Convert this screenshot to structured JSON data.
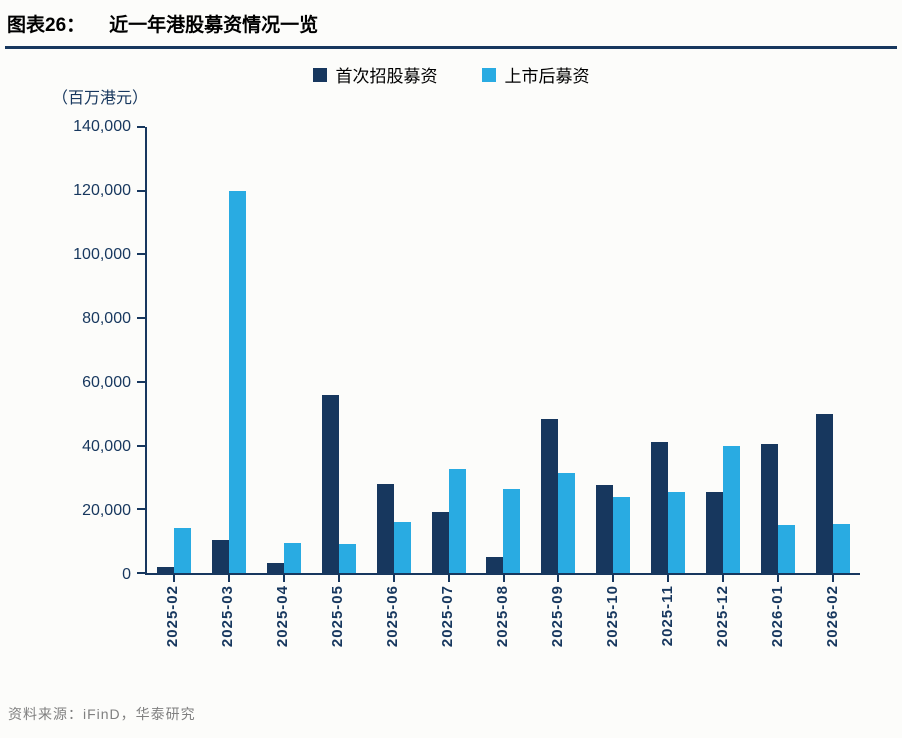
{
  "header": {
    "label": "图表26：",
    "title": "近一年港股募资情况一览"
  },
  "unit_label": "（百万港元）",
  "source": "资料来源：iFinD，华泰研究",
  "colors": {
    "axis": "#17375E",
    "series_dark": "#17375E",
    "series_light": "#29ABE2",
    "title_underline": "#17375E",
    "source_text": "#808080"
  },
  "chart_data": {
    "type": "bar",
    "title": "近一年港股募资情况一览",
    "unit": "百万港元",
    "categories": [
      "2025-02",
      "2025-03",
      "2025-04",
      "2025-05",
      "2025-06",
      "2025-07",
      "2025-08",
      "2025-09",
      "2025-10",
      "2025-11",
      "2025-12",
      "2026-01",
      "2026-02"
    ],
    "series": [
      {
        "name": "首次招股募资",
        "color": "#17375E",
        "values": [
          2000,
          10500,
          3000,
          56000,
          28000,
          19000,
          5000,
          48500,
          27500,
          41000,
          25500,
          40500,
          50000
        ]
      },
      {
        "name": "上市后募资",
        "color": "#29ABE2",
        "values": [
          14000,
          120000,
          9500,
          9000,
          16000,
          32500,
          26500,
          31500,
          24000,
          25500,
          40000,
          15000,
          15500
        ]
      }
    ],
    "ylim": [
      0,
      140000
    ],
    "yticks": [
      0,
      20000,
      40000,
      60000,
      80000,
      100000,
      120000,
      140000
    ],
    "ytick_interval": 20000,
    "grid": false,
    "legend_position": "top",
    "xlabel": "",
    "ylabel": "（百万港元）"
  }
}
